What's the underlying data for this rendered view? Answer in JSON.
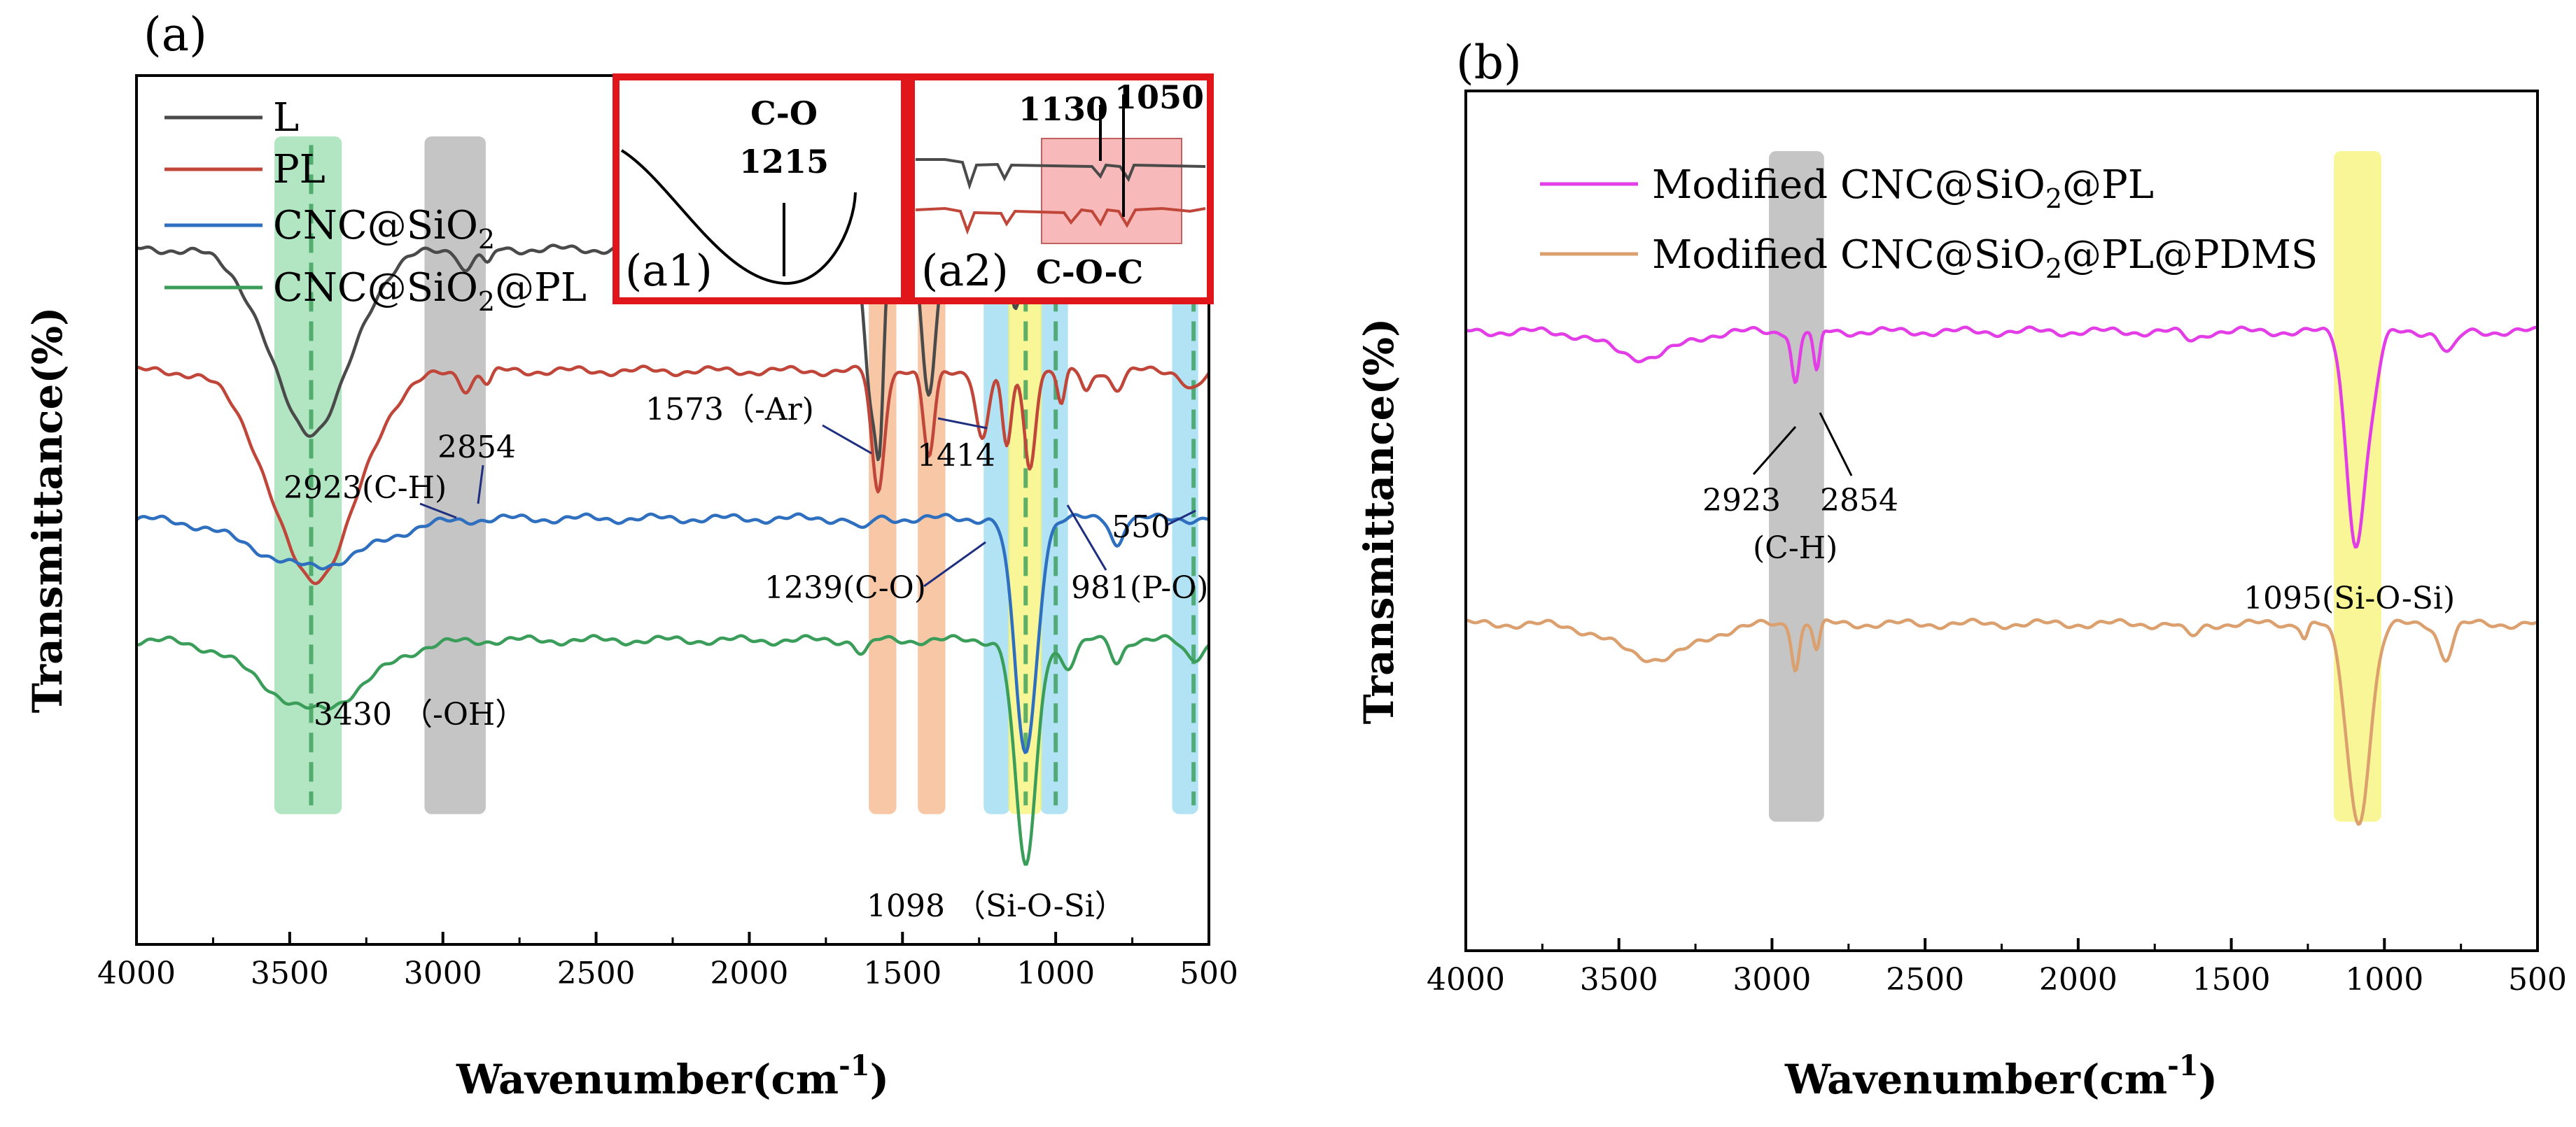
{
  "chart_data": [
    {
      "type": "line",
      "panel_label": "(a)",
      "xlabel": "Wavenumber(cm",
      "xlabel_sup": "-1",
      "xlabel_end": ")",
      "ylabel": "Transmittance(%)",
      "xlim": [
        4000,
        500
      ],
      "x_ticks": [
        "4000",
        "3500",
        "3000",
        "2500",
        "2000",
        "1500",
        "1000",
        "500"
      ],
      "grid": false,
      "legend": {
        "placement": "top-left",
        "entries": [
          {
            "series": "L",
            "base": "L",
            "sub": "",
            "after": ""
          },
          {
            "series": "PL",
            "base": "PL",
            "sub": "",
            "after": ""
          },
          {
            "series": "CNC@SiO2",
            "base": "CNC@SiO",
            "sub": "2",
            "after": ""
          },
          {
            "series": "CNC@SiO2@PL",
            "base": "CNC@SiO",
            "sub": "2",
            "after": "@PL"
          }
        ]
      },
      "series": [
        {
          "name": "L",
          "color": "#4a4a4a",
          "baseline": 80,
          "bands": [
            [
              3430,
              130,
              21
            ],
            [
              2923,
              20,
              2.5
            ],
            [
              2854,
              15,
              2
            ],
            [
              1600,
              22,
              18
            ],
            [
              1573,
              12,
              14
            ],
            [
              1414,
              22,
              17
            ],
            [
              1215,
              50,
              3
            ],
            [
              1130,
              15,
              6
            ],
            [
              1050,
              15,
              5
            ],
            [
              600,
              60,
              2.5
            ]
          ]
        },
        {
          "name": "PL",
          "color": "#c0463a",
          "baseline": 66,
          "bands": [
            [
              3420,
              140,
              24
            ],
            [
              2923,
              20,
              2
            ],
            [
              2854,
              15,
              1.5
            ],
            [
              1580,
              20,
              14
            ],
            [
              1414,
              18,
              10
            ],
            [
              1239,
              20,
              8
            ],
            [
              1160,
              15,
              9
            ],
            [
              1085,
              18,
              11
            ],
            [
              981,
              12,
              4
            ],
            [
              900,
              15,
              2.5
            ],
            [
              800,
              20,
              2
            ],
            [
              550,
              30,
              2
            ]
          ]
        },
        {
          "name": "CNC@SiO2",
          "color": "#2e6fbf",
          "baseline": 49,
          "bands": [
            [
              3430,
              190,
              5.5
            ],
            [
              1630,
              20,
              1.5
            ],
            [
              1098,
              36,
              27
            ],
            [
              800,
              18,
              3
            ]
          ]
        },
        {
          "name": "CNC@SiO2@PL",
          "color": "#3a9e5a",
          "baseline": 35,
          "bands": [
            [
              3420,
              170,
              8
            ],
            [
              1630,
              20,
              1.5
            ],
            [
              1098,
              34,
              26
            ],
            [
              960,
              25,
              3
            ],
            [
              800,
              18,
              2.5
            ],
            [
              550,
              30,
              2
            ]
          ]
        }
      ],
      "highlights": [
        {
          "x": [
            3060,
            2860
          ],
          "color": "#9e9e9e",
          "opacity": 0.6
        },
        {
          "x": [
            1610,
            1520
          ],
          "color": "#f2a16b",
          "opacity": 0.6
        },
        {
          "x": [
            1450,
            1360
          ],
          "color": "#f2a16b",
          "opacity": 0.6
        },
        {
          "x": [
            1235,
            1150
          ],
          "color": "#7fd0ef",
          "opacity": 0.6
        },
        {
          "x": [
            1050,
            960
          ],
          "color": "#7fd0ef",
          "opacity": 0.6
        },
        {
          "x": [
            620,
            535
          ],
          "color": "#7fd0ef",
          "opacity": 0.6
        },
        {
          "x": [
            3550,
            3330
          ],
          "color": "#7fd69b",
          "opacity": 0.6
        },
        {
          "x": [
            1155,
            1045
          ],
          "color": "#f5f26b",
          "opacity": 0.7
        }
      ],
      "dashed_lines": [
        {
          "x": 3430,
          "color": "#3a9e5a"
        },
        {
          "x": 1000,
          "color": "#3a9e5a"
        },
        {
          "x": 550,
          "color": "#3a9e5a"
        },
        {
          "x": 1098,
          "color": "#3a9e5a"
        }
      ],
      "annotations": [
        {
          "text": "2923(C-H)"
        },
        {
          "text": "2854"
        },
        {
          "text": "1573（-Ar)"
        },
        {
          "text": "1414"
        },
        {
          "text": "1239(C-O)"
        },
        {
          "text": "981(P-O)"
        },
        {
          "text": "550"
        },
        {
          "text": "3430 （-OH）"
        },
        {
          "text": "1098 （Si-O-Si）"
        }
      ],
      "insets": [
        {
          "label": "(a1)",
          "group": "C-O",
          "peak": "1215"
        },
        {
          "label": "(a2)",
          "group": "C-O-C",
          "peaks": [
            "1130",
            "1050"
          ]
        }
      ]
    },
    {
      "type": "line",
      "panel_label": "(b)",
      "xlabel": "Wavenumber(cm",
      "xlabel_sup": "-1",
      "xlabel_end": ")",
      "ylabel": "Transmittance(%)",
      "xlim": [
        4000,
        500
      ],
      "x_ticks": [
        "4000",
        "3500",
        "3000",
        "2500",
        "2000",
        "1500",
        "1000",
        "500"
      ],
      "grid": false,
      "legend": {
        "placement": "top-left",
        "entries": [
          {
            "series": "Modified CNC@SiO2@PL",
            "base": "Modified CNC@SiO",
            "sub": "2",
            "after": "@PL"
          },
          {
            "series": "Modified CNC@SiO2@PL@PDMS",
            "base": "Modified CNC@SiO",
            "sub": "2",
            "after": "@PL@PDMS"
          }
        ]
      },
      "series": [
        {
          "name": "Modified CNC@SiO2@PL",
          "color": "#e23de6",
          "baseline": 72,
          "bands": [
            [
              3420,
              110,
              3
            ],
            [
              2923,
              12,
              6
            ],
            [
              2854,
              10,
              5
            ],
            [
              1630,
              25,
              1
            ],
            [
              1095,
              30,
              24
            ],
            [
              1040,
              25,
              6
            ],
            [
              790,
              25,
              2.5
            ]
          ]
        },
        {
          "name": "Modified CNC@SiO2@PL@PDMS",
          "color": "#dba06e",
          "baseline": 38,
          "bands": [
            [
              3380,
              130,
              4
            ],
            [
              2923,
              12,
              5
            ],
            [
              2854,
              10,
              3
            ],
            [
              1630,
              25,
              1.5
            ],
            [
              1260,
              10,
              1.5
            ],
            [
              1085,
              38,
              23
            ],
            [
              800,
              22,
              4
            ]
          ]
        }
      ],
      "highlights": [
        {
          "x": [
            3010,
            2830
          ],
          "color": "#9e9e9e",
          "opacity": 0.6
        },
        {
          "x": [
            1165,
            1010
          ],
          "color": "#f5f26b",
          "opacity": 0.7
        }
      ],
      "annotations": [
        {
          "text": "2923"
        },
        {
          "text": "2854"
        },
        {
          "text": "(C-H)"
        },
        {
          "text": "1095(Si-O-Si)"
        }
      ]
    }
  ]
}
